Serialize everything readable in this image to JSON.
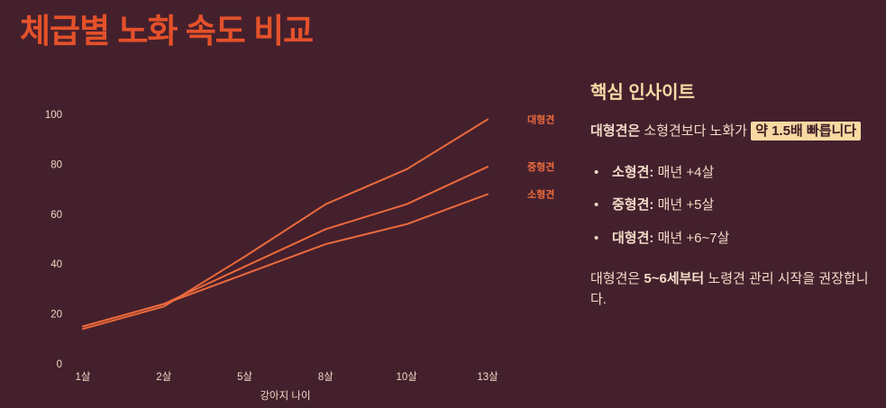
{
  "title": "체급별 노화 속도 비교",
  "colors": {
    "background": "#44202d",
    "accent": "#e4512a",
    "line": "#ec6a3c",
    "axis_text": "#eed9c3",
    "body_text": "#f2dcc8",
    "heading_text": "#f8d9a6",
    "highlight_bg": "#f8d9a2",
    "highlight_text": "#3a1b24"
  },
  "chart_data": {
    "type": "line",
    "title": "",
    "categories": [
      "1살",
      "2살",
      "5살",
      "8살",
      "10살",
      "13살"
    ],
    "series": [
      {
        "name": "대형견",
        "values": [
          14,
          23,
          43,
          64,
          78,
          98
        ]
      },
      {
        "name": "중형견",
        "values": [
          15,
          24,
          39,
          54,
          64,
          79
        ]
      },
      {
        "name": "소형견",
        "values": [
          15,
          24,
          36,
          48,
          56,
          68
        ]
      }
    ],
    "xlabel": "강아지 나이",
    "ylabel": "",
    "ylim": [
      0,
      100
    ],
    "yticks": [
      0,
      20,
      40,
      60,
      80,
      100
    ],
    "grid": false,
    "legend_position": "right-end-labels",
    "line_color": "#ec6a3c"
  },
  "insights": {
    "title": "핵심 인사이트",
    "lead_bold": "대형견은",
    "lead_rest": " 소형견보다 노화가 ",
    "lead_highlight": "약 1.5배 빠릅니다",
    "bullet_glyph": "•",
    "bullets": [
      {
        "label": "소형견:",
        "text": " 매년 +4살"
      },
      {
        "label": "중형견:",
        "text": " 매년 +5살"
      },
      {
        "label": "대형견:",
        "text": " 매년 +6~7살"
      }
    ],
    "footer_prefix": "대형견은 ",
    "footer_bold": "5~6세부터",
    "footer_suffix": " 노령견 관리 시작을 권장합니다."
  }
}
